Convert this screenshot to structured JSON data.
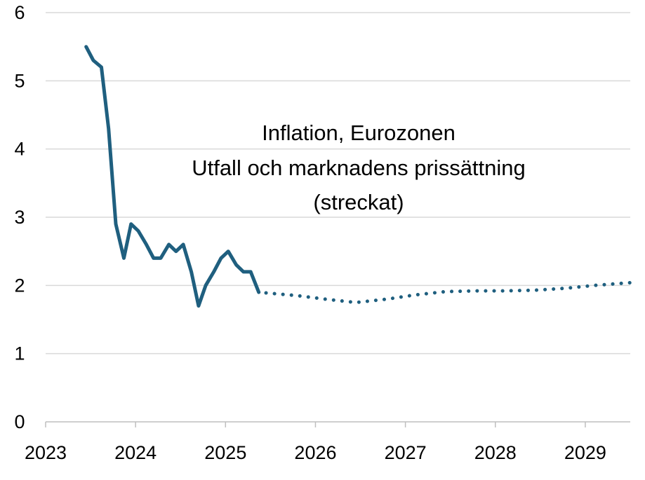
{
  "chart_data": {
    "type": "line",
    "title_lines": [
      "Inflation, Eurozonen",
      "Utfall och marknadens prissättning",
      "(streckat)"
    ],
    "xlabel": "",
    "ylabel": "",
    "x_unit": "year",
    "xlim": [
      2023.0,
      2029.5
    ],
    "ylim": [
      0,
      6
    ],
    "x_ticks": [
      2023,
      2024,
      2025,
      2026,
      2027,
      2028,
      2029
    ],
    "x_tick_labels": [
      "2023",
      "2024",
      "2025",
      "2026",
      "2027",
      "2028",
      "2029"
    ],
    "y_ticks": [
      0,
      1,
      2,
      3,
      4,
      5,
      6
    ],
    "y_tick_labels": [
      "0",
      "1",
      "2",
      "3",
      "4",
      "5",
      "6"
    ],
    "grid": "horizontal",
    "color": "#1f5f7f",
    "series": [
      {
        "style": "solid",
        "x": [
          2023.45,
          2023.53,
          2023.62,
          2023.7,
          2023.78,
          2023.87,
          2023.95,
          2024.03,
          2024.12,
          2024.2,
          2024.28,
          2024.37,
          2024.45,
          2024.53,
          2024.62,
          2024.7,
          2024.78,
          2024.87,
          2024.95,
          2025.03,
          2025.12,
          2025.2,
          2025.28,
          2025.37
        ],
        "y": [
          5.5,
          5.3,
          5.2,
          4.3,
          2.9,
          2.4,
          2.9,
          2.8,
          2.6,
          2.4,
          2.4,
          2.6,
          2.5,
          2.6,
          2.2,
          1.7,
          2.0,
          2.2,
          2.4,
          2.5,
          2.3,
          2.2,
          2.2,
          1.9
        ]
      },
      {
        "style": "dotted",
        "x": [
          2025.45,
          2025.8,
          2026.1,
          2026.45,
          2026.8,
          2027.1,
          2027.45,
          2027.8,
          2028.1,
          2028.45,
          2028.8,
          2029.1,
          2029.5
        ],
        "y": [
          1.89,
          1.85,
          1.8,
          1.75,
          1.8,
          1.86,
          1.91,
          1.92,
          1.92,
          1.93,
          1.96,
          2.0,
          2.04
        ]
      }
    ]
  }
}
